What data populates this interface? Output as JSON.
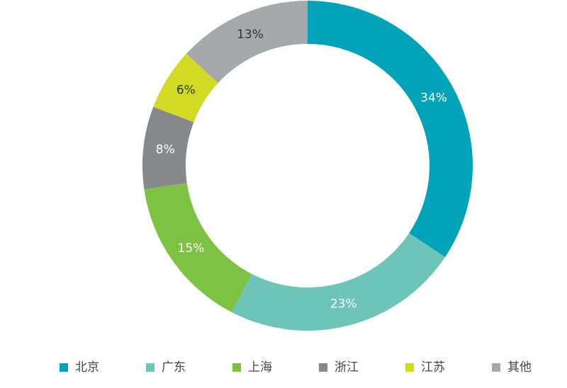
{
  "chart_data": {
    "type": "pie",
    "donut": true,
    "categories": [
      "北京",
      "广东",
      "上海",
      "浙江",
      "江苏",
      "其他"
    ],
    "values": [
      34,
      23,
      15,
      8,
      6,
      13
    ],
    "labels": [
      "34%",
      "23%",
      "15%",
      "8%",
      "6%",
      "13%"
    ],
    "colors": [
      "#00A3B8",
      "#6CC5B8",
      "#7DC242",
      "#87888C",
      "#D2DA24",
      "#A7A8AB"
    ],
    "label_colors": [
      "#ffffff",
      "#ffffff",
      "#ffffff",
      "#ffffff",
      "#333333",
      "#333333"
    ],
    "legend_position": "bottom"
  }
}
